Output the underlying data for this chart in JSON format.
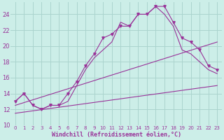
{
  "xlabel": "Windchill (Refroidissement éolien,°C)",
  "background_color": "#cceee8",
  "grid_color": "#aad4ce",
  "line_color": "#993399",
  "xlim": [
    -0.5,
    23.5
  ],
  "ylim": [
    10,
    25.5
  ],
  "yticks": [
    10,
    12,
    14,
    16,
    18,
    20,
    22,
    24
  ],
  "xticks": [
    0,
    1,
    2,
    3,
    4,
    5,
    6,
    7,
    8,
    9,
    10,
    11,
    12,
    13,
    14,
    15,
    16,
    17,
    18,
    19,
    20,
    21,
    22,
    23
  ],
  "hours": [
    0,
    1,
    2,
    3,
    4,
    5,
    6,
    7,
    8,
    9,
    10,
    11,
    12,
    13,
    14,
    15,
    16,
    17,
    18,
    19,
    20,
    21,
    22,
    23
  ],
  "temp": [
    13.0,
    14.0,
    12.5,
    12.0,
    12.5,
    12.5,
    14.0,
    15.5,
    17.5,
    19.0,
    21.0,
    21.5,
    22.5,
    22.5,
    24.0,
    24.0,
    25.0,
    25.0,
    23.0,
    21.0,
    20.5,
    19.5,
    17.5,
    17.0
  ],
  "wc": [
    13.0,
    14.0,
    12.5,
    12.0,
    12.5,
    12.5,
    13.0,
    15.0,
    17.0,
    18.5,
    19.5,
    20.5,
    23.0,
    22.5,
    24.0,
    24.0,
    25.0,
    24.0,
    22.5,
    19.5,
    19.0,
    18.0,
    17.0,
    16.5
  ],
  "line2_y": [
    12.5,
    20.5
  ],
  "line3_y": [
    11.5,
    15.0
  ]
}
